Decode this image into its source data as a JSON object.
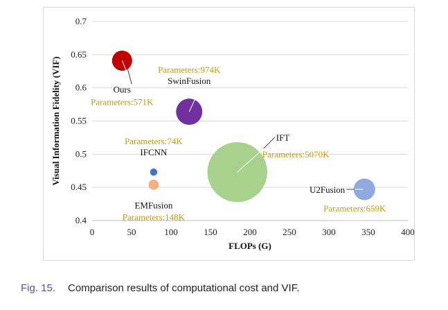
{
  "chart_data": {
    "type": "scatter",
    "subtype": "bubble",
    "xlabel": "FLOPs (G)",
    "ylabel": "Visual Information Fidelity (VIF)",
    "xlim": [
      0,
      400
    ],
    "ylim": [
      0.4,
      0.7
    ],
    "xticks": [
      "0",
      "50",
      "100",
      "150",
      "200",
      "250",
      "300",
      "350",
      "400"
    ],
    "yticks": [
      "0.4",
      "0.45",
      "0.5",
      "0.55",
      "0.6",
      "0.65",
      "0.7"
    ],
    "grid": "horizontal",
    "points": [
      {
        "name": "Ours",
        "params": "Parameters:571K",
        "params_k": 571,
        "x": 38,
        "y": 0.641,
        "color": "#c00000"
      },
      {
        "name": "SwinFusion",
        "params": "Parameters:974K",
        "params_k": 974,
        "x": 123,
        "y": 0.564,
        "color": "#7030a0"
      },
      {
        "name": "IFCNN",
        "params": "Parameters:74K",
        "params_k": 74,
        "x": 78,
        "y": 0.473,
        "color": "#4472c4"
      },
      {
        "name": "EMFusion",
        "params": "Parameters:148K",
        "params_k": 148,
        "x": 78,
        "y": 0.454,
        "color": "#f4b183"
      },
      {
        "name": "IFT",
        "params": "Parameters:5070K",
        "params_k": 5070,
        "x": 184,
        "y": 0.473,
        "color": "#a9d18e"
      },
      {
        "name": "U2Fusion",
        "params": "Parameters:659K",
        "params_k": 659,
        "x": 345,
        "y": 0.447,
        "color": "#8faadc"
      }
    ]
  },
  "caption": {
    "figure_number": "Fig. 15.",
    "text": "Comparison results of computational cost and VIF."
  },
  "colors": {
    "param_label": "#c49a12",
    "caption_fig": "#5a4fa8"
  }
}
